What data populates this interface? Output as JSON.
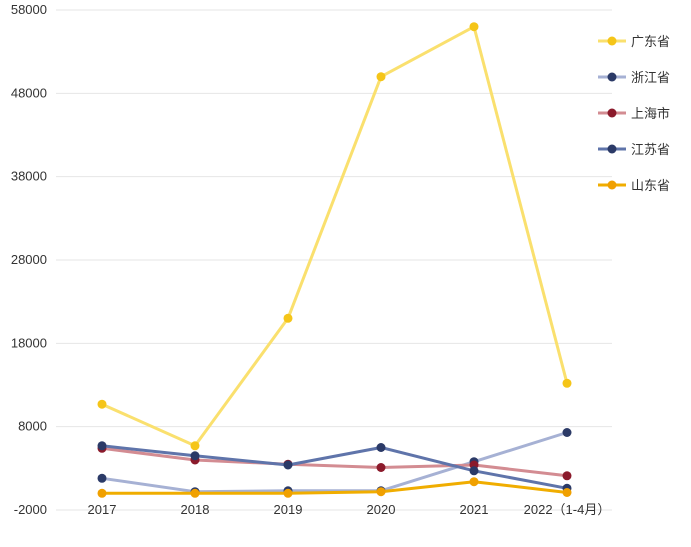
{
  "chart_data": {
    "type": "line",
    "title": "",
    "xlabel": "",
    "ylabel": "",
    "ylim": [
      -2000,
      58000
    ],
    "yticks": [
      -2000,
      8000,
      18000,
      28000,
      38000,
      48000,
      58000
    ],
    "grid": true,
    "legend_position": "right",
    "categories": [
      "2017",
      "2018",
      "2019",
      "2020",
      "2021",
      "2022（1-4月）"
    ],
    "series": [
      {
        "name": "广东省",
        "color": "#fae06e",
        "marker_color": "#f5c518",
        "values": [
          10700,
          5700,
          21000,
          50000,
          56000,
          13200
        ]
      },
      {
        "name": "浙江省",
        "color": "#a6b1d4",
        "marker_color": "#2b3a67",
        "values": [
          1800,
          200,
          300,
          300,
          3800,
          7300
        ]
      },
      {
        "name": "上海市",
        "color": "#d38c92",
        "marker_color": "#8b1a2b",
        "values": [
          5400,
          4000,
          3500,
          3100,
          3400,
          2100
        ]
      },
      {
        "name": "江苏省",
        "color": "#5f74aa",
        "marker_color": "#2b3a67",
        "values": [
          5700,
          4500,
          3400,
          5500,
          2700,
          600
        ]
      },
      {
        "name": "山东省",
        "color": "#f0ad00",
        "marker_color": "#f0a000",
        "values": [
          0,
          0,
          0,
          200,
          1400,
          100
        ]
      }
    ]
  }
}
